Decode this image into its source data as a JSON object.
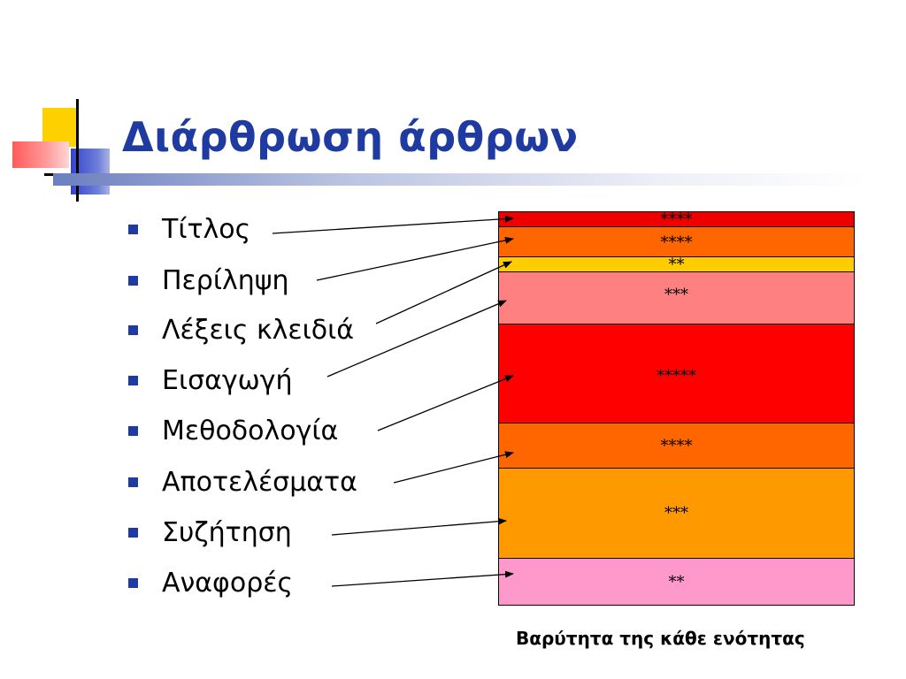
{
  "slide": {
    "title": "Διάρθρωση άρθρων",
    "caption": "Βαρύτητα της κάθε ενότητας"
  },
  "sections": [
    {
      "label": "Τίτλος",
      "weight": "****",
      "color": "#ee0000"
    },
    {
      "label": "Περίληψη",
      "weight": "****",
      "color": "#ff6600"
    },
    {
      "label": "Λέξεις κλειδιά",
      "weight": "**",
      "color": "#ffcc00"
    },
    {
      "label": "Εισαγωγή",
      "weight": "***",
      "color": "#ff8080"
    },
    {
      "label": "Μεθοδολογία",
      "weight": "*****",
      "color": "#ff0000"
    },
    {
      "label": "Αποτελέσματα",
      "weight": "****",
      "color": "#ff6600"
    },
    {
      "label": "Συζήτηση",
      "weight": "***",
      "color": "#ff9900"
    },
    {
      "label": "Αναφορές",
      "weight": "**",
      "color": "#ff99cc"
    }
  ]
}
